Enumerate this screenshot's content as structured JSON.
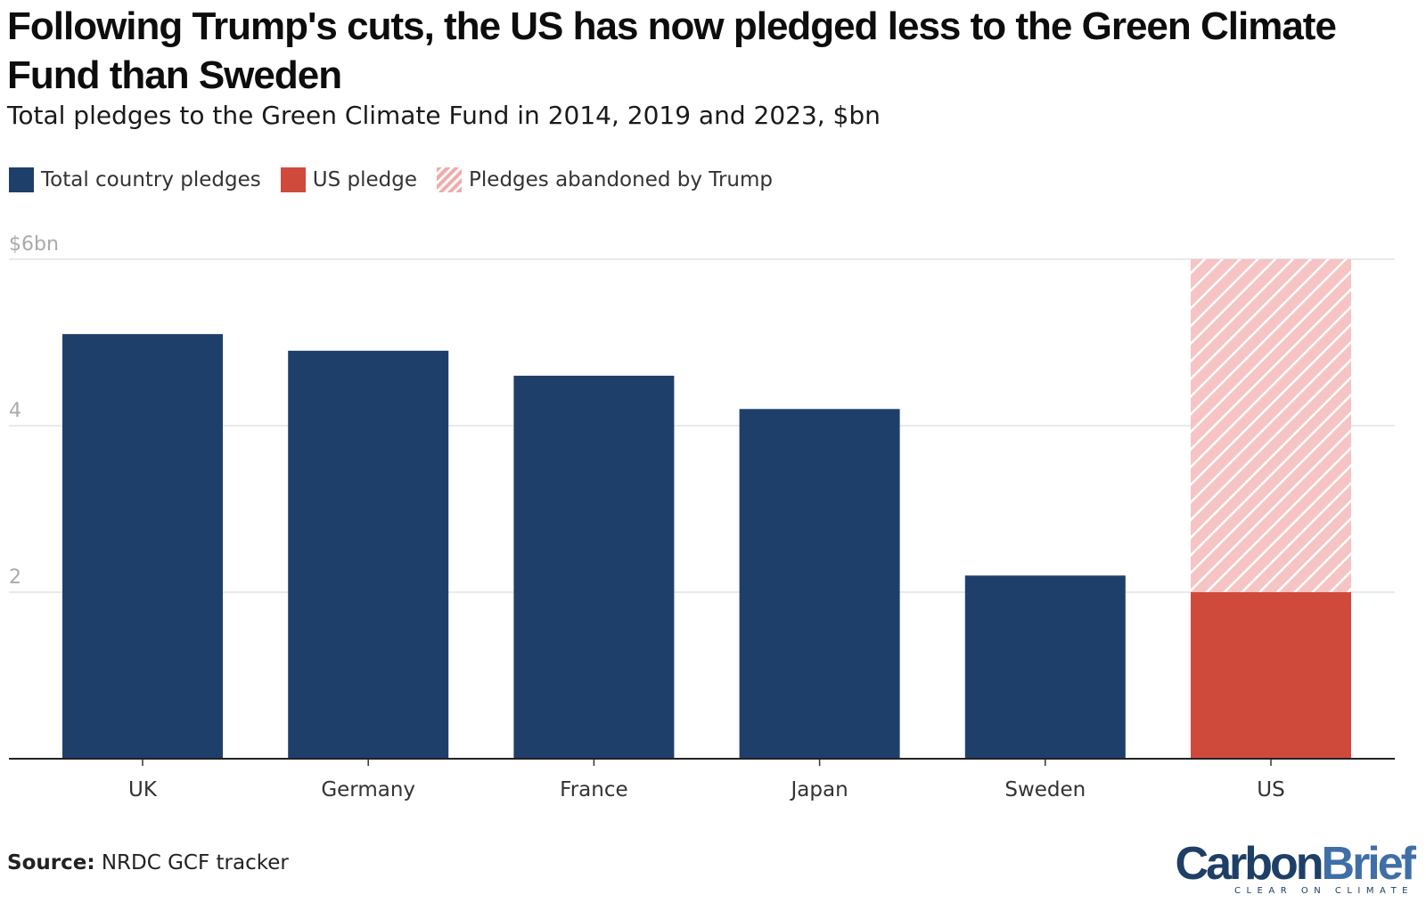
{
  "title": "Following Trump's cuts, the US has now pledged less to the Green Climate Fund than Sweden",
  "subtitle": "Total pledges to the Green Climate Fund in 2014, 2019 and 2023, $bn",
  "legend": [
    {
      "label": "Total country pledges",
      "color": "#1f3f6b",
      "pattern": "solid"
    },
    {
      "label": "US pledge",
      "color": "#d04a3c",
      "pattern": "solid"
    },
    {
      "label": "Pledges abandoned by Trump",
      "color": "#f1aaaa",
      "pattern": "hatched"
    }
  ],
  "source_label": "Source:",
  "source_text": "NRDC GCF tracker",
  "logo": {
    "part1": "Carbon",
    "part2": "Brief",
    "tagline": "CLEAR ON CLIMATE"
  },
  "chart_data": {
    "type": "bar",
    "stacked": true,
    "categories": [
      "UK",
      "Germany",
      "France",
      "Japan",
      "Sweden",
      "US"
    ],
    "series": [
      {
        "name": "Total country pledges",
        "color": "#1f3f6b",
        "values": [
          5.1,
          4.9,
          4.6,
          4.2,
          2.2,
          0
        ]
      },
      {
        "name": "US pledge",
        "color": "#d04a3c",
        "values": [
          0,
          0,
          0,
          0,
          0,
          2.0
        ]
      },
      {
        "name": "Pledges abandoned by Trump",
        "color": "#f1aaaa",
        "pattern": "hatched",
        "values": [
          0,
          0,
          0,
          0,
          0,
          4.0
        ]
      }
    ],
    "ylim": [
      0,
      6
    ],
    "yticks": [
      {
        "value": 6,
        "label": "$6bn"
      },
      {
        "value": 4,
        "label": "4"
      },
      {
        "value": 2,
        "label": "2"
      }
    ],
    "grid": true
  }
}
